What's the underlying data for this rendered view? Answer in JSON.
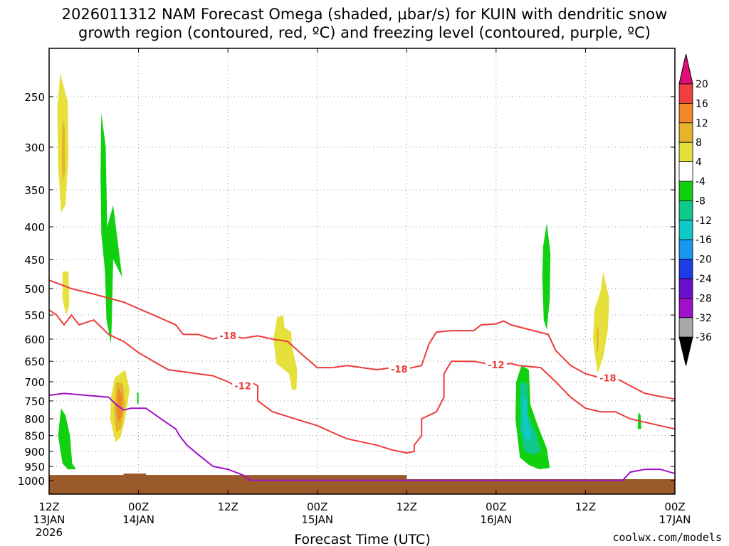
{
  "title_line1": "2026011312 NAM Forecast Omega (shaded, μbar/s) for KUIN with dendritic snow",
  "title_line2": "growth region (contoured, red, ºC) and freezing level (contoured, purple, ºC)",
  "credit": "coolwx.com/models",
  "colors": {
    "isotherm": "#ee3c3c",
    "freezing_level": "#a010c8",
    "ground": "#9b5a2a",
    "grid": "#9a9a9a"
  },
  "chart_data": {
    "type": "heatmap",
    "xlabel": "Forecast Time (UTC)",
    "ylabel": "",
    "xlim": [
      0,
      84
    ],
    "ylim": [
      1050,
      210
    ],
    "y_scale": "log-pressure",
    "grid": true,
    "x_ticks": [
      {
        "hour": 0,
        "line1": "12Z",
        "line2": "13JAN",
        "line3": "2026"
      },
      {
        "hour": 12,
        "line1": "00Z",
        "line2": "14JAN",
        "line3": ""
      },
      {
        "hour": 24,
        "line1": "12Z",
        "line2": "",
        "line3": ""
      },
      {
        "hour": 36,
        "line1": "00Z",
        "line2": "15JAN",
        "line3": ""
      },
      {
        "hour": 48,
        "line1": "12Z",
        "line2": "",
        "line3": ""
      },
      {
        "hour": 60,
        "line1": "00Z",
        "line2": "16JAN",
        "line3": ""
      },
      {
        "hour": 72,
        "line1": "12Z",
        "line2": "",
        "line3": ""
      },
      {
        "hour": 84,
        "line1": "00Z",
        "line2": "17JAN",
        "line3": ""
      }
    ],
    "y_ticks": [
      250,
      300,
      350,
      400,
      450,
      500,
      550,
      600,
      650,
      700,
      750,
      800,
      850,
      900,
      950,
      1000
    ],
    "colorbar": {
      "labels": [
        "20",
        "16",
        "12",
        "8",
        "4",
        "-4",
        "-8",
        "-12",
        "-16",
        "-20",
        "-24",
        "-28",
        "-32",
        "-36"
      ],
      "colors": [
        "#e0107a",
        "#f04040",
        "#f08a28",
        "#e6b42a",
        "#e6e03c",
        "#ffffff",
        "#10d010",
        "#10c88c",
        "#10c8c8",
        "#1896f0",
        "#1c3ce6",
        "#6a10c8",
        "#a010c8",
        "#a8a8a8",
        "#000000"
      ]
    },
    "omega_areas": [
      {
        "value": 5,
        "color": "#e6e03c",
        "pts": [
          [
            1.5,
            230
          ],
          [
            2.5,
            255
          ],
          [
            2.6,
            310
          ],
          [
            2.2,
            370
          ],
          [
            1.6,
            380
          ],
          [
            1.2,
            320
          ],
          [
            1.1,
            260
          ]
        ]
      },
      {
        "value": 9,
        "color": "#e6b42a",
        "pts": [
          [
            1.8,
            270
          ],
          [
            2.1,
            280
          ],
          [
            2.1,
            330
          ],
          [
            1.8,
            340
          ],
          [
            1.7,
            300
          ]
        ]
      },
      {
        "value": -6,
        "color": "#10d010",
        "pts": [
          [
            7.0,
            265
          ],
          [
            7.6,
            300
          ],
          [
            7.8,
            400
          ],
          [
            8.6,
            370
          ],
          [
            9.3,
            430
          ],
          [
            9.8,
            480
          ],
          [
            8.6,
            450
          ],
          [
            8.4,
            570
          ],
          [
            8.3,
            610
          ],
          [
            7.7,
            560
          ],
          [
            7.5,
            470
          ],
          [
            7.0,
            410
          ],
          [
            6.9,
            330
          ]
        ]
      },
      {
        "value": 5,
        "color": "#e6e03c",
        "pts": [
          [
            1.8,
            470
          ],
          [
            2.6,
            470
          ],
          [
            2.7,
            530
          ],
          [
            2.3,
            550
          ],
          [
            1.8,
            520
          ]
        ]
      },
      {
        "value": 5,
        "color": "#e6e03c",
        "pts": [
          [
            8.8,
            690
          ],
          [
            10.2,
            670
          ],
          [
            10.8,
            720
          ],
          [
            10.2,
            800
          ],
          [
            9.6,
            855
          ],
          [
            8.9,
            870
          ],
          [
            8.2,
            800
          ],
          [
            8.3,
            740
          ]
        ]
      },
      {
        "value": 9,
        "color": "#e6b42a",
        "pts": [
          [
            9.0,
            700
          ],
          [
            9.9,
            705
          ],
          [
            10.2,
            760
          ],
          [
            9.6,
            830
          ],
          [
            9.0,
            840
          ],
          [
            8.7,
            780
          ]
        ]
      },
      {
        "value": 13,
        "color": "#f08a28",
        "pts": [
          [
            9.3,
            715
          ],
          [
            9.8,
            735
          ],
          [
            9.8,
            790
          ],
          [
            9.3,
            810
          ],
          [
            9.0,
            770
          ]
        ]
      },
      {
        "value": -6,
        "color": "#10d010",
        "pts": [
          [
            11.8,
            725
          ],
          [
            12.0,
            730
          ],
          [
            12.0,
            760
          ],
          [
            11.8,
            755
          ]
        ]
      },
      {
        "value": -6,
        "color": "#10d010",
        "pts": [
          [
            1.6,
            770
          ],
          [
            2.2,
            790
          ],
          [
            2.8,
            850
          ],
          [
            3.1,
            940
          ],
          [
            3.6,
            960
          ],
          [
            2.5,
            960
          ],
          [
            1.8,
            940
          ],
          [
            1.2,
            850
          ]
        ]
      },
      {
        "value": 5,
        "color": "#e6e03c",
        "pts": [
          [
            30.6,
            555
          ],
          [
            31.4,
            550
          ],
          [
            31.6,
            575
          ],
          [
            32.5,
            585
          ],
          [
            32.6,
            615
          ],
          [
            33.3,
            670
          ],
          [
            33.2,
            720
          ],
          [
            32.6,
            720
          ],
          [
            32.2,
            680
          ],
          [
            30.5,
            655
          ],
          [
            30.1,
            600
          ]
        ]
      },
      {
        "value": -6,
        "color": "#10d010",
        "pts": [
          [
            66.8,
            395
          ],
          [
            67.3,
            440
          ],
          [
            67.2,
            520
          ],
          [
            66.8,
            580
          ],
          [
            66.4,
            560
          ],
          [
            66.2,
            480
          ],
          [
            66.3,
            430
          ]
        ]
      },
      {
        "value": 5,
        "color": "#e6e03c",
        "pts": [
          [
            74.4,
            470
          ],
          [
            75.2,
            520
          ],
          [
            75.0,
            580
          ],
          [
            74.4,
            640
          ],
          [
            73.6,
            680
          ],
          [
            73.0,
            600
          ],
          [
            73.2,
            540
          ],
          [
            74.0,
            505
          ]
        ]
      },
      {
        "value": 9,
        "color": "#e6b42a",
        "pts": [
          [
            73.5,
            570
          ],
          [
            73.8,
            580
          ],
          [
            73.7,
            625
          ],
          [
            73.5,
            630
          ]
        ]
      },
      {
        "value": -6,
        "color": "#10d010",
        "pts": [
          [
            79.1,
            780
          ],
          [
            79.4,
            790
          ],
          [
            79.5,
            830
          ],
          [
            79.0,
            830
          ]
        ]
      },
      {
        "value": -6,
        "color": "#10d010",
        "pts": [
          [
            63.4,
            660
          ],
          [
            64.4,
            670
          ],
          [
            64.6,
            760
          ],
          [
            65.6,
            820
          ],
          [
            66.8,
            890
          ],
          [
            67.2,
            955
          ],
          [
            65.8,
            960
          ],
          [
            64.4,
            945
          ],
          [
            63.2,
            920
          ],
          [
            62.6,
            800
          ],
          [
            62.7,
            700
          ]
        ]
      },
      {
        "value": -10,
        "color": "#10c88c",
        "pts": [
          [
            63.2,
            700
          ],
          [
            64.2,
            705
          ],
          [
            64.3,
            790
          ],
          [
            65.5,
            850
          ],
          [
            66.0,
            900
          ],
          [
            65.0,
            910
          ],
          [
            63.8,
            900
          ],
          [
            63.2,
            830
          ]
        ]
      },
      {
        "value": -14,
        "color": "#10c8c8",
        "pts": [
          [
            63.6,
            740
          ],
          [
            64.1,
            745
          ],
          [
            64.2,
            800
          ],
          [
            64.8,
            850
          ],
          [
            64.2,
            870
          ],
          [
            63.6,
            830
          ]
        ]
      }
    ],
    "isotherms": [
      {
        "value": -18,
        "label": "-18",
        "pts": [
          [
            0,
            485
          ],
          [
            3,
            500
          ],
          [
            6,
            510
          ],
          [
            10,
            525
          ],
          [
            14,
            550
          ],
          [
            17,
            570
          ],
          [
            18,
            590
          ],
          [
            20,
            590
          ],
          [
            22,
            600
          ],
          [
            24,
            590
          ],
          [
            26,
            598
          ],
          [
            28,
            593
          ],
          [
            30,
            600
          ],
          [
            32,
            605
          ],
          [
            34,
            635
          ],
          [
            36,
            665
          ],
          [
            38,
            665
          ],
          [
            40,
            660
          ],
          [
            42,
            665
          ],
          [
            44,
            670
          ],
          [
            46,
            665
          ],
          [
            48,
            668
          ],
          [
            50,
            660
          ],
          [
            51,
            610
          ],
          [
            52,
            585
          ],
          [
            54,
            582
          ],
          [
            57,
            582
          ],
          [
            58,
            570
          ],
          [
            60,
            568
          ],
          [
            61,
            562
          ],
          [
            62,
            570
          ],
          [
            64,
            578
          ],
          [
            67,
            590
          ],
          [
            68,
            625
          ],
          [
            70,
            660
          ],
          [
            72,
            680
          ],
          [
            74,
            690
          ],
          [
            76,
            690
          ],
          [
            78,
            710
          ],
          [
            80,
            730
          ],
          [
            82,
            738
          ],
          [
            84,
            745
          ]
        ],
        "labels": [
          [
            24,
            592
          ],
          [
            47,
            668
          ],
          [
            75,
            690
          ]
        ]
      },
      {
        "value": -12,
        "label": "-12",
        "pts": [
          [
            0,
            540
          ],
          [
            1,
            550
          ],
          [
            2,
            570
          ],
          [
            3,
            550
          ],
          [
            4,
            570
          ],
          [
            6,
            560
          ],
          [
            8,
            590
          ],
          [
            10,
            605
          ],
          [
            12,
            630
          ],
          [
            14,
            650
          ],
          [
            16,
            670
          ],
          [
            18,
            675
          ],
          [
            20,
            680
          ],
          [
            22,
            685
          ],
          [
            24,
            700
          ],
          [
            25,
            710
          ],
          [
            27,
            700
          ],
          [
            28,
            710
          ],
          [
            28,
            750
          ],
          [
            30,
            780
          ],
          [
            33,
            800
          ],
          [
            36,
            820
          ],
          [
            38,
            840
          ],
          [
            40,
            860
          ],
          [
            42,
            870
          ],
          [
            44,
            880
          ],
          [
            46,
            895
          ],
          [
            47,
            900
          ],
          [
            48,
            905
          ],
          [
            49,
            900
          ],
          [
            49,
            880
          ],
          [
            50,
            850
          ],
          [
            50,
            800
          ],
          [
            52,
            780
          ],
          [
            53,
            740
          ],
          [
            53,
            680
          ],
          [
            54,
            650
          ],
          [
            57,
            650
          ],
          [
            60,
            660
          ],
          [
            62,
            655
          ],
          [
            63,
            660
          ],
          [
            66,
            665
          ],
          [
            68,
            700
          ],
          [
            70,
            740
          ],
          [
            72,
            770
          ],
          [
            74,
            780
          ],
          [
            76,
            780
          ],
          [
            78,
            800
          ],
          [
            80,
            810
          ],
          [
            82,
            820
          ],
          [
            84,
            830
          ]
        ],
        "labels": [
          [
            26,
            710
          ],
          [
            60,
            658
          ]
        ]
      }
    ],
    "freezing_level": [
      [
        0,
        735
      ],
      [
        2,
        730
      ],
      [
        5,
        735
      ],
      [
        8,
        740
      ],
      [
        9,
        760
      ],
      [
        10,
        775
      ],
      [
        11,
        770
      ],
      [
        13,
        770
      ],
      [
        15,
        800
      ],
      [
        17,
        830
      ],
      [
        17.5,
        850
      ],
      [
        18.5,
        880
      ],
      [
        20,
        910
      ],
      [
        22,
        950
      ],
      [
        24,
        960
      ],
      [
        26,
        980
      ],
      [
        27,
        999
      ],
      [
        77,
        999
      ],
      [
        78,
        970
      ],
      [
        80,
        960
      ],
      [
        82,
        960
      ],
      [
        84,
        975
      ]
    ],
    "ground": [
      [
        0,
        980
      ],
      [
        10,
        980
      ],
      [
        10,
        975
      ],
      [
        13,
        975
      ],
      [
        13,
        980
      ],
      [
        48,
        980
      ],
      [
        48,
        995
      ],
      [
        84,
        995
      ]
    ]
  }
}
